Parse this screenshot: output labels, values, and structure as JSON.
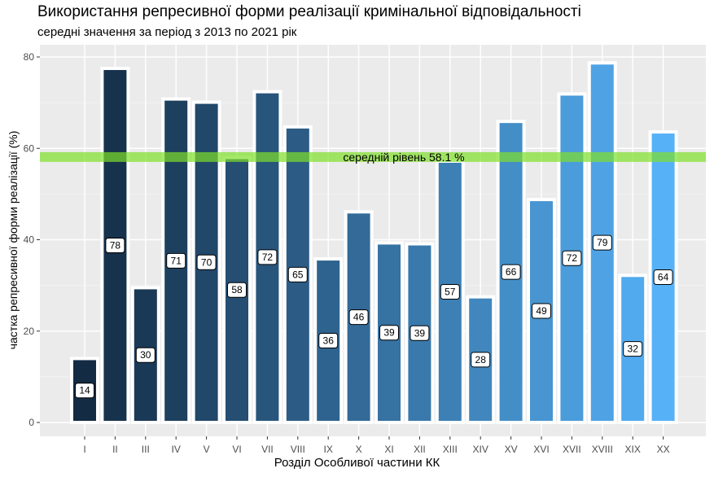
{
  "chart_data": {
    "type": "bar",
    "title": "Використання репресивної форми реалізації кримінальної відповідальності",
    "subtitle": "середні значення за період з 2013 по 2021 рік",
    "xlabel": "Розділ Особливої частини КК",
    "ylabel": "частка репресивної форми реалізації (%)",
    "ylim": [
      0,
      82
    ],
    "yticks": [
      0,
      20,
      40,
      60,
      80
    ],
    "categories": [
      "I",
      "II",
      "III",
      "IV",
      "V",
      "VI",
      "VII",
      "VIII",
      "IX",
      "X",
      "XI",
      "XII",
      "XIII",
      "XIV",
      "XV",
      "XVI",
      "XVII",
      "XVIII",
      "XIX",
      "XX"
    ],
    "values": [
      14,
      77.5,
      29.5,
      70.8,
      70.1,
      58,
      72.4,
      64.7,
      35.8,
      46.1,
      39.3,
      39.1,
      57.2,
      27.5,
      65.9,
      48.8,
      71.9,
      78.7,
      32.2,
      63.6
    ],
    "data_labels": [
      "14",
      "78",
      "30",
      "71",
      "70",
      "58",
      "72",
      "65",
      "36",
      "46",
      "39",
      "39",
      "57",
      "28",
      "66",
      "49",
      "72",
      "79",
      "32",
      "64"
    ],
    "reference_line": {
      "value": 58.1,
      "label": "середній рівень  58.1 %"
    },
    "colors": {
      "start": "#132b43",
      "end": "#56b1f7",
      "reference": "#7fe02a",
      "panel": "#ebebeb",
      "grid": "#ffffff"
    },
    "grid": true,
    "legend": "none"
  }
}
